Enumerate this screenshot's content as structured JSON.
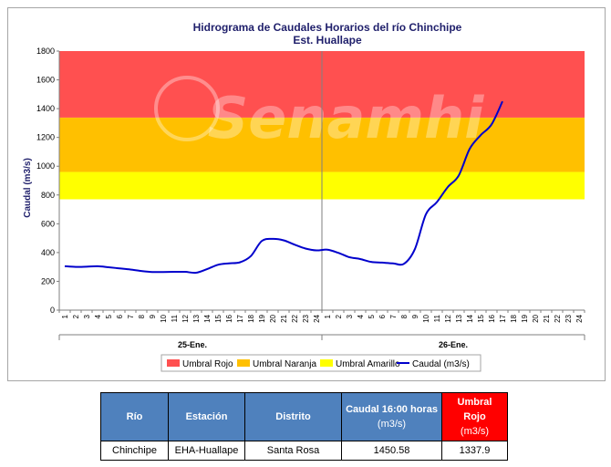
{
  "chart": {
    "title_line1": "Hidrograma de Caudales Horarios del río Chinchipe",
    "title_line2": "Est. Huallape",
    "ylabel": "Caudal  (m3/s)",
    "watermark": "Senamhi",
    "date_labels": [
      "25-Ene.",
      "26-Ene."
    ],
    "legend": [
      {
        "label": "Umbral Rojo",
        "color": "#ff5050"
      },
      {
        "label": "Umbral Naranja",
        "color": "#ffc000"
      },
      {
        "label": "Umbral Amarillo",
        "color": "#ffff00"
      },
      {
        "label": "Caudal (m3/s)",
        "color": "#0000cc"
      }
    ]
  },
  "chart_data": {
    "type": "line",
    "title": "Hidrograma de Caudales Horarios del río Chinchipe",
    "subtitle": "Est. Huallape",
    "xlabel": "",
    "ylabel": "Caudal  (m3/s)",
    "ylim": [
      0,
      1800
    ],
    "yticks": [
      0,
      200,
      400,
      600,
      800,
      1000,
      1200,
      1400,
      1600,
      1800
    ],
    "x_tick_labels": [
      "1",
      "2",
      "3",
      "4",
      "5",
      "6",
      "7",
      "8",
      "9",
      "10",
      "11",
      "12",
      "13",
      "14",
      "15",
      "16",
      "17",
      "18",
      "19",
      "20",
      "21",
      "22",
      "23",
      "24",
      "1",
      "2",
      "3",
      "4",
      "5",
      "6",
      "7",
      "8",
      "9",
      "10",
      "11",
      "12",
      "13",
      "14",
      "15",
      "16",
      "17",
      "18",
      "19",
      "20",
      "21",
      "22",
      "23",
      "24"
    ],
    "day_groups": [
      {
        "label": "25-Ene.",
        "hours": 24
      },
      {
        "label": "26-Ene.",
        "hours": 24
      }
    ],
    "thresholds": [
      {
        "name": "Umbral Amarillo",
        "from": 770,
        "to": 960,
        "color": "#ffff00"
      },
      {
        "name": "Umbral Naranja",
        "from": 960,
        "to": 1337.9,
        "color": "#ffc000"
      },
      {
        "name": "Umbral Rojo",
        "from": 1337.9,
        "to": 1800,
        "color": "#ff5050"
      }
    ],
    "series": [
      {
        "name": "Caudal (m3/s)",
        "color": "#0000cc",
        "values": [
          305,
          300,
          302,
          305,
          298,
          290,
          282,
          272,
          265,
          265,
          266,
          266,
          260,
          285,
          315,
          325,
          332,
          375,
          480,
          495,
          485,
          455,
          428,
          415,
          420,
          398,
          368,
          355,
          335,
          330,
          325,
          322,
          425,
          665,
          750,
          855,
          935,
          1120,
          1215,
          1290,
          1450.58
        ]
      }
    ],
    "grid": false,
    "legend_position": "bottom"
  },
  "table": {
    "headers": [
      {
        "text": "Río"
      },
      {
        "text": "Estación"
      },
      {
        "text": "Distrito"
      },
      {
        "text": "Caudal 16:00 horas",
        "sub": "(m3/s)"
      },
      {
        "text": "Umbral Rojo",
        "sub": "(m3/s)"
      }
    ],
    "row": [
      "Chinchipe",
      "EHA-Huallape",
      "Santa Rosa",
      "1450.58",
      "1337.9"
    ]
  }
}
